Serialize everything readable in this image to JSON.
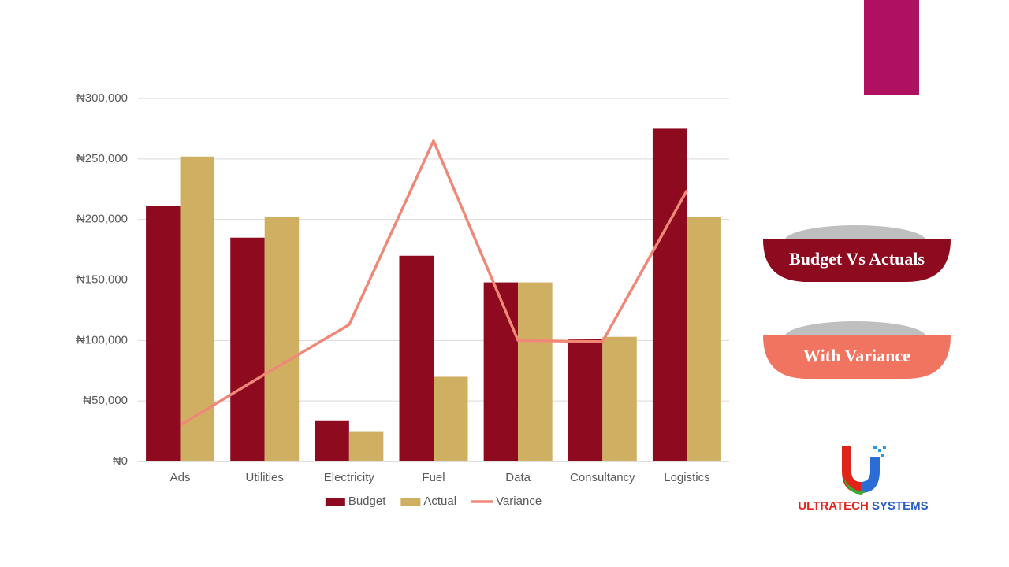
{
  "chart_data": {
    "type": "combo",
    "categories": [
      "Ads",
      "Utilities",
      "Electricity",
      "Fuel",
      "Data",
      "Consultancy",
      "Logistics"
    ],
    "series": [
      {
        "name": "Budget",
        "type": "bar",
        "color": "#8d0a1f",
        "values": [
          211000,
          185000,
          34000,
          170000,
          148000,
          101000,
          275000
        ]
      },
      {
        "name": "Actual",
        "type": "bar",
        "color": "#cfb063",
        "values": [
          252000,
          202000,
          25000,
          70000,
          148000,
          103000,
          202000
        ]
      },
      {
        "name": "Variance",
        "type": "line",
        "color": "#f08878",
        "values": [
          30000,
          72000,
          113000,
          265000,
          100000,
          99000,
          224000
        ]
      }
    ],
    "ylim": [
      0,
      300000
    ],
    "yticks": [
      {
        "value": 0,
        "label": "₦0"
      },
      {
        "value": 50000,
        "label": "₦50,000"
      },
      {
        "value": 100000,
        "label": "₦100,000"
      },
      {
        "value": 150000,
        "label": "₦150,000"
      },
      {
        "value": 200000,
        "label": "₦200,000"
      },
      {
        "value": 250000,
        "label": "₦250,000"
      },
      {
        "value": 300000,
        "label": "₦300,000"
      }
    ],
    "grid": true,
    "legend": "bottom"
  },
  "slide": {
    "banners": [
      "Budget Vs Actuals",
      "With Variance"
    ],
    "logo": [
      "ULTRATECH",
      "SYSTEMS"
    ]
  }
}
